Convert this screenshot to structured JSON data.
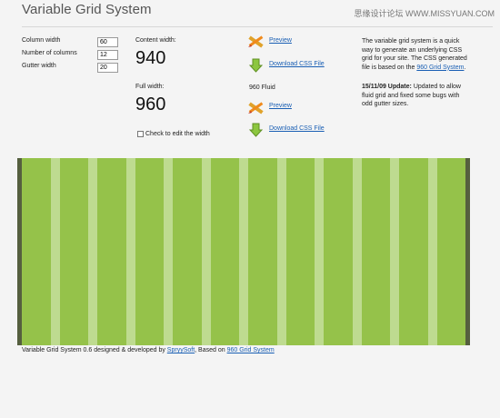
{
  "header": {
    "title": "Variable Grid System",
    "watermark": "思缘设计论坛 WWW.MISSYUAN.COM"
  },
  "form": {
    "column_width_label": "Column width",
    "column_width_value": "60",
    "columns_label": "Number of columns",
    "columns_value": "12",
    "gutter_label": "Gutter width",
    "gutter_value": "20"
  },
  "widths": {
    "content_width_label": "Content width:",
    "content_width_value": "940",
    "full_width_label": "Full width:",
    "full_width_value": "960",
    "edit_checkbox_label": "Check to edit the width"
  },
  "actions": {
    "preview_label": "Preview",
    "download_label": "Download CSS File",
    "fluid_title": "960 Fluid",
    "fluid_preview_label": "Preview",
    "fluid_download_label": "Download CSS File"
  },
  "description": {
    "intro_pre": "The variable grid system is a quick way to generate an underlying CSS grid for your site. The CSS generated file is based on the ",
    "intro_link": "960 Grid System",
    "intro_post": ".",
    "update_title": "15/11/09 Update:",
    "update_text": " Updated to allow fluid grid and fixed some bugs with odd gutter sizes."
  },
  "grid": {
    "columns": 12,
    "column_color": "#95c24a",
    "gutter_color": "#bedb90",
    "border_color": "#555f3f"
  },
  "footer": {
    "text_pre": "Variable Grid System 0.6 designed & developed by ",
    "author_link": "SpryySoft",
    "text_mid": ", Based on ",
    "source_link": "960 Grid System"
  },
  "colors": {
    "link": "#1a5fb4",
    "page_bg": "#f4f4f4"
  }
}
